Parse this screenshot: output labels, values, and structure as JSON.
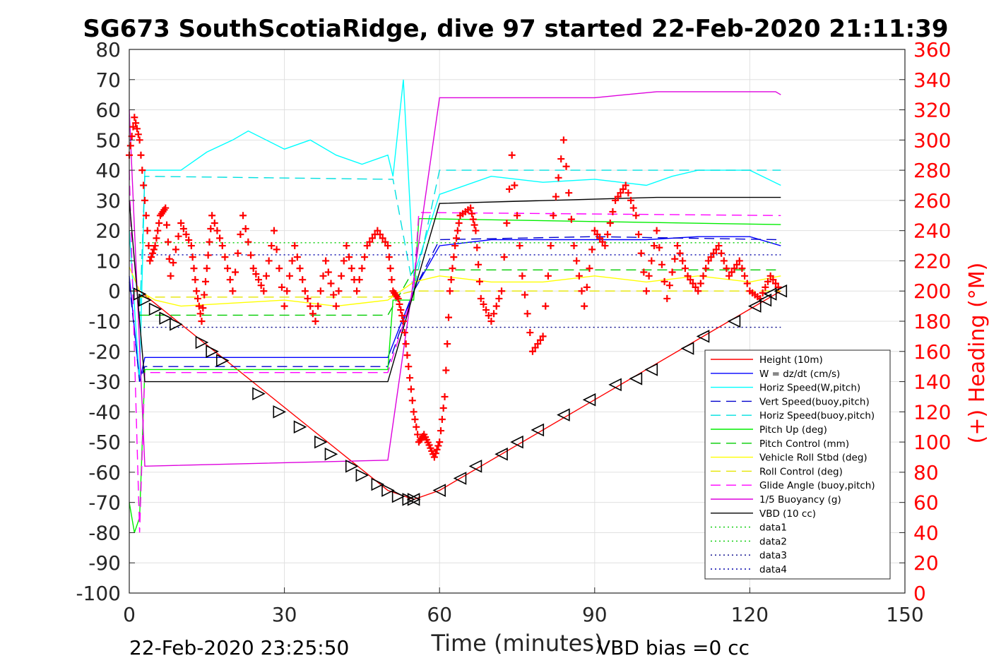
{
  "chart_data": {
    "type": "line",
    "title": "SG673 SouthScotiaRidge, dive 97 started 22-Feb-2020 21:11:39",
    "xlabel": "Time (minutes)",
    "ylabel": "",
    "y2label": "(+) Heading (°M)",
    "xlim": [
      0,
      150
    ],
    "ylim": [
      -100,
      80
    ],
    "y2lim": [
      0,
      360
    ],
    "xticks": [
      0,
      30,
      60,
      90,
      120,
      150
    ],
    "yticks": [
      -100,
      -90,
      -80,
      -70,
      -60,
      -50,
      -40,
      -30,
      -20,
      -10,
      0,
      10,
      20,
      30,
      40,
      50,
      60,
      70,
      80
    ],
    "y2ticks": [
      0,
      20,
      40,
      60,
      80,
      100,
      120,
      140,
      160,
      180,
      200,
      220,
      240,
      260,
      280,
      300,
      320,
      340,
      360
    ],
    "grid": true,
    "legend_position": "lower-right",
    "footer_left": "22-Feb-2020 23:25:50",
    "footer_right": "VBD bias =0 cc",
    "series": [
      {
        "name": "Height (10m)",
        "color": "#ff0000",
        "dash": "solid",
        "x": [
          0,
          2,
          50,
          55,
          60,
          90,
          120,
          126
        ],
        "y": [
          0,
          0,
          -66,
          -69,
          -66,
          -36,
          -6,
          0
        ]
      },
      {
        "name": "W = dz/dt (cm/s)",
        "color": "#0000ff",
        "dash": "solid",
        "x": [
          0,
          2,
          3,
          10,
          20,
          30,
          40,
          50,
          55,
          60,
          70,
          80,
          90,
          100,
          110,
          120,
          126
        ],
        "y": [
          5,
          -30,
          -22,
          -22,
          -22,
          -22,
          -22,
          -22,
          0,
          15,
          17,
          17,
          17,
          17,
          18,
          18,
          15
        ]
      },
      {
        "name": "Horiz Speed(W,pitch)",
        "color": "#00ffff",
        "dash": "solid",
        "x": [
          0,
          2,
          3,
          10,
          15,
          20,
          23,
          30,
          35,
          40,
          45,
          50,
          51,
          53,
          55,
          60,
          70,
          80,
          90,
          100,
          105,
          110,
          120,
          126
        ],
        "y": [
          20,
          -30,
          40,
          40,
          46,
          50,
          53,
          47,
          50,
          45,
          42,
          45,
          38,
          70,
          5,
          32,
          38,
          36,
          37,
          35,
          38,
          40,
          40,
          35
        ]
      },
      {
        "name": "Vert Speed(buoy,pitch)",
        "color": "#0000cd",
        "dash": "dash",
        "x": [
          0,
          2,
          3,
          50,
          55,
          60,
          90,
          126
        ],
        "y": [
          3,
          -30,
          -25,
          -25,
          0,
          17,
          18,
          17
        ]
      },
      {
        "name": "Horiz Speed(buoy,pitch)",
        "color": "#00e0e0",
        "dash": "dash",
        "x": [
          2,
          3,
          50,
          51,
          55,
          60,
          90,
          126
        ],
        "y": [
          -10,
          38,
          37,
          37,
          0,
          40,
          40,
          40
        ]
      },
      {
        "name": "Pitch Up (deg)",
        "color": "#00ee00",
        "dash": "solid",
        "x": [
          0,
          1,
          2,
          3,
          50,
          51,
          55,
          56,
          90,
          126
        ],
        "y": [
          -70,
          -80,
          -75,
          -26,
          -26,
          -3,
          -3,
          24,
          23,
          22
        ]
      },
      {
        "name": "Pitch Control (mm)",
        "color": "#00cc00",
        "dash": "dash",
        "x": [
          2,
          50,
          55,
          126
        ],
        "y": [
          -8,
          -8,
          7,
          7
        ]
      },
      {
        "name": "Vehicle Roll Stbd (deg)",
        "color": "#ffff00",
        "dash": "solid",
        "x": [
          0,
          2,
          5,
          10,
          20,
          30,
          40,
          50,
          55,
          60,
          70,
          80,
          90,
          100,
          110,
          120,
          126
        ],
        "y": [
          8,
          0,
          -3,
          -5,
          -4,
          -3,
          -5,
          -3,
          3,
          5,
          3,
          3,
          5,
          3,
          5,
          3,
          5
        ]
      },
      {
        "name": "Roll Control (deg)",
        "color": "#e6e600",
        "dash": "dash",
        "x": [
          2,
          50,
          55,
          126
        ],
        "y": [
          -2,
          -2,
          0,
          0
        ]
      },
      {
        "name": "Glide Angle (buoy,pitch)",
        "color": "#ff00ff",
        "dash": "dash",
        "x": [
          0,
          2,
          3,
          50,
          55,
          56,
          126
        ],
        "y": [
          40,
          -80,
          -27,
          -27,
          0,
          26,
          25
        ]
      },
      {
        "name": "1/5 Buoyancy (g)",
        "color": "#dd00dd",
        "dash": "solid",
        "x": [
          0,
          3,
          50,
          60,
          90,
          102,
          125,
          126
        ],
        "y": [
          60,
          -58,
          -56,
          64,
          64,
          66,
          66,
          65
        ]
      },
      {
        "name": "VBD (10 cc)",
        "color": "#000000",
        "dash": "solid",
        "x": [
          0,
          3,
          50,
          60,
          102,
          126
        ],
        "y": [
          30,
          -30,
          -30,
          29,
          31,
          31
        ]
      },
      {
        "name": "data1",
        "color": "#00cc00",
        "dash": "dot",
        "x": [
          2,
          50,
          55,
          126
        ],
        "y": [
          16,
          16,
          16,
          16
        ]
      },
      {
        "name": "data2",
        "color": "#00cc00",
        "dash": "dot",
        "x": [],
        "y": []
      },
      {
        "name": "data3",
        "color": "#000088",
        "dash": "dot",
        "x": [
          2,
          50,
          55,
          126
        ],
        "y": [
          -12,
          -12,
          -12,
          -12
        ]
      },
      {
        "name": "data4",
        "color": "#0000aa",
        "dash": "dot",
        "x": [
          2,
          50,
          55,
          126
        ],
        "y": [
          12,
          12,
          12,
          12
        ]
      }
    ],
    "heading": {
      "name": "(+) Heading",
      "color": "#ff0000",
      "axis": "right",
      "x": [
        0,
        1,
        2,
        3,
        4,
        5,
        6,
        7,
        8,
        10,
        12,
        13,
        14,
        15,
        16,
        18,
        20,
        22,
        24,
        26,
        28,
        30,
        32,
        34,
        36,
        38,
        40,
        42,
        44,
        46,
        48,
        50,
        51,
        52,
        53,
        54,
        55,
        56,
        57,
        58,
        59,
        60,
        61,
        62,
        63,
        64,
        66,
        67,
        68,
        70,
        72,
        74,
        76,
        78,
        80,
        82,
        84,
        86,
        88,
        90,
        92,
        94,
        96,
        98,
        100,
        102,
        104,
        106,
        108,
        110,
        112,
        114,
        116,
        118,
        120,
        122,
        124,
        126
      ],
      "y": [
        290,
        315,
        300,
        260,
        220,
        230,
        250,
        255,
        210,
        245,
        230,
        200,
        180,
        215,
        250,
        230,
        200,
        250,
        215,
        200,
        240,
        190,
        230,
        200,
        180,
        220,
        190,
        230,
        200,
        230,
        240,
        230,
        200,
        195,
        180,
        150,
        120,
        100,
        105,
        98,
        90,
        100,
        130,
        200,
        230,
        250,
        255,
        240,
        195,
        180,
        200,
        290,
        210,
        160,
        170,
        250,
        300,
        230,
        190,
        240,
        230,
        260,
        270,
        250,
        200,
        240,
        195,
        230,
        210,
        200,
        220,
        230,
        210,
        220,
        200,
        195,
        210,
        200
      ]
    },
    "dive_markers": {
      "down_x": [
        2,
        3,
        5,
        7,
        9,
        14,
        16,
        18,
        25,
        29,
        33,
        37,
        39,
        43,
        45,
        48,
        50,
        52,
        54,
        55
      ],
      "down_y": [
        -1,
        -3,
        -6,
        -9,
        -11,
        -17,
        -20,
        -23,
        -34,
        -40,
        -45,
        -50,
        -54,
        -58,
        -61,
        -64,
        -66,
        -68,
        -69,
        -69
      ],
      "up_x": [
        55,
        60,
        64,
        67,
        72,
        75,
        79,
        84,
        89,
        94,
        98,
        101,
        108,
        111,
        117,
        121,
        123,
        124,
        126
      ],
      "up_y": [
        -69,
        -66,
        -62,
        -58,
        -54,
        -50,
        -46,
        -41,
        -36,
        -31,
        -29,
        -26,
        -19,
        -15,
        -10,
        -5,
        -3,
        -1,
        0
      ]
    }
  }
}
